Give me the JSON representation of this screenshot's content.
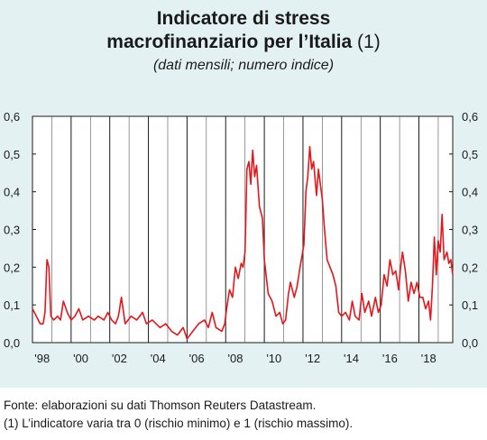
{
  "title": {
    "bold": "Indicatore di stress",
    "line2_bold": "macrofinanziario per l’Italia",
    "line2_regular": " (1)"
  },
  "subtitle": "(dati mensili; numero indice)",
  "source": "Fonte: elaborazioni su dati Thomson Reuters Datastream.",
  "footnote": "(1) L’indicatore varia tra 0 (rischio minimo) e 1 (rischio massimo).",
  "chart_data": {
    "type": "line",
    "xlim": [
      1997.0,
      2018.75
    ],
    "ylim": [
      0.0,
      0.6
    ],
    "yticks": [
      "0,0",
      "0,1",
      "0,2",
      "0,3",
      "0,4",
      "0,5",
      "0,6"
    ],
    "xtick_labels": [
      "'98",
      "'00",
      "'02",
      "'04",
      "'06",
      "'08",
      "'10",
      "'12",
      "'14",
      "'16",
      "'18"
    ],
    "xtick_positions": [
      1997.5,
      1999.5,
      2001.5,
      2003.5,
      2005.5,
      2007.5,
      2009.5,
      2011.5,
      2013.5,
      2015.5,
      2017.5
    ],
    "grid": "vertical lines at year boundaries; darker every 2 years",
    "series": [
      {
        "name": "",
        "color": "#e8151b",
        "points": [
          [
            1997.0,
            0.09
          ],
          [
            1997.2,
            0.07
          ],
          [
            1997.4,
            0.05
          ],
          [
            1997.55,
            0.05
          ],
          [
            1997.65,
            0.08
          ],
          [
            1997.75,
            0.22
          ],
          [
            1997.85,
            0.2
          ],
          [
            1997.95,
            0.07
          ],
          [
            1998.1,
            0.06
          ],
          [
            1998.3,
            0.07
          ],
          [
            1998.45,
            0.06
          ],
          [
            1998.6,
            0.11
          ],
          [
            1998.8,
            0.08
          ],
          [
            1999.0,
            0.06
          ],
          [
            1999.2,
            0.07
          ],
          [
            1999.4,
            0.09
          ],
          [
            1999.6,
            0.06
          ],
          [
            1999.9,
            0.07
          ],
          [
            2000.2,
            0.06
          ],
          [
            2000.4,
            0.07
          ],
          [
            2000.7,
            0.06
          ],
          [
            2000.9,
            0.08
          ],
          [
            2001.1,
            0.06
          ],
          [
            2001.3,
            0.05
          ],
          [
            2001.45,
            0.07
          ],
          [
            2001.6,
            0.12
          ],
          [
            2001.8,
            0.05
          ],
          [
            2002.1,
            0.07
          ],
          [
            2002.4,
            0.06
          ],
          [
            2002.7,
            0.08
          ],
          [
            2002.9,
            0.05
          ],
          [
            2003.2,
            0.06
          ],
          [
            2003.4,
            0.05
          ],
          [
            2003.6,
            0.04
          ],
          [
            2003.9,
            0.05
          ],
          [
            2004.2,
            0.03
          ],
          [
            2004.5,
            0.02
          ],
          [
            2004.8,
            0.04
          ],
          [
            2005.0,
            0.01
          ],
          [
            2005.3,
            0.03
          ],
          [
            2005.6,
            0.05
          ],
          [
            2005.9,
            0.06
          ],
          [
            2006.1,
            0.04
          ],
          [
            2006.3,
            0.08
          ],
          [
            2006.5,
            0.04
          ],
          [
            2006.8,
            0.03
          ],
          [
            2006.95,
            0.05
          ],
          [
            2007.05,
            0.09
          ],
          [
            2007.2,
            0.14
          ],
          [
            2007.35,
            0.12
          ],
          [
            2007.5,
            0.2
          ],
          [
            2007.65,
            0.17
          ],
          [
            2007.8,
            0.21
          ],
          [
            2007.9,
            0.2
          ],
          [
            2008.0,
            0.24
          ],
          [
            2008.1,
            0.46
          ],
          [
            2008.2,
            0.48
          ],
          [
            2008.3,
            0.42
          ],
          [
            2008.4,
            0.51
          ],
          [
            2008.5,
            0.44
          ],
          [
            2008.6,
            0.47
          ],
          [
            2008.75,
            0.36
          ],
          [
            2008.9,
            0.33
          ],
          [
            2009.0,
            0.22
          ],
          [
            2009.2,
            0.13
          ],
          [
            2009.4,
            0.11
          ],
          [
            2009.6,
            0.07
          ],
          [
            2009.8,
            0.08
          ],
          [
            2009.95,
            0.05
          ],
          [
            2010.1,
            0.06
          ],
          [
            2010.25,
            0.13
          ],
          [
            2010.35,
            0.16
          ],
          [
            2010.45,
            0.14
          ],
          [
            2010.55,
            0.12
          ],
          [
            2010.7,
            0.15
          ],
          [
            2010.85,
            0.2
          ],
          [
            2010.95,
            0.23
          ],
          [
            2011.05,
            0.26
          ],
          [
            2011.15,
            0.4
          ],
          [
            2011.25,
            0.44
          ],
          [
            2011.35,
            0.52
          ],
          [
            2011.45,
            0.46
          ],
          [
            2011.55,
            0.48
          ],
          [
            2011.7,
            0.39
          ],
          [
            2011.8,
            0.46
          ],
          [
            2011.9,
            0.42
          ],
          [
            2012.0,
            0.38
          ],
          [
            2012.1,
            0.31
          ],
          [
            2012.25,
            0.22
          ],
          [
            2012.4,
            0.2
          ],
          [
            2012.55,
            0.18
          ],
          [
            2012.7,
            0.15
          ],
          [
            2012.85,
            0.08
          ],
          [
            2013.0,
            0.07
          ],
          [
            2013.2,
            0.08
          ],
          [
            2013.4,
            0.06
          ],
          [
            2013.55,
            0.11
          ],
          [
            2013.7,
            0.07
          ],
          [
            2013.9,
            0.06
          ],
          [
            2014.05,
            0.13
          ],
          [
            2014.2,
            0.08
          ],
          [
            2014.4,
            0.11
          ],
          [
            2014.55,
            0.07
          ],
          [
            2014.75,
            0.12
          ],
          [
            2014.9,
            0.08
          ],
          [
            2015.05,
            0.1
          ],
          [
            2015.2,
            0.18
          ],
          [
            2015.35,
            0.15
          ],
          [
            2015.5,
            0.22
          ],
          [
            2015.65,
            0.18
          ],
          [
            2015.8,
            0.19
          ],
          [
            2015.95,
            0.14
          ],
          [
            2016.05,
            0.2
          ],
          [
            2016.15,
            0.24
          ],
          [
            2016.3,
            0.19
          ],
          [
            2016.45,
            0.11
          ],
          [
            2016.6,
            0.16
          ],
          [
            2016.75,
            0.13
          ],
          [
            2016.9,
            0.16
          ],
          [
            2017.05,
            0.12
          ],
          [
            2017.2,
            0.12
          ],
          [
            2017.35,
            0.09
          ],
          [
            2017.5,
            0.11
          ],
          [
            2017.6,
            0.06
          ],
          [
            2017.7,
            0.15
          ],
          [
            2017.8,
            0.28
          ],
          [
            2017.9,
            0.18
          ],
          [
            2018.0,
            0.27
          ],
          [
            2018.1,
            0.24
          ],
          [
            2018.2,
            0.34
          ],
          [
            2018.3,
            0.22
          ],
          [
            2018.45,
            0.24
          ],
          [
            2018.55,
            0.21
          ],
          [
            2018.65,
            0.22
          ],
          [
            2018.75,
            0.18
          ]
        ]
      }
    ]
  }
}
